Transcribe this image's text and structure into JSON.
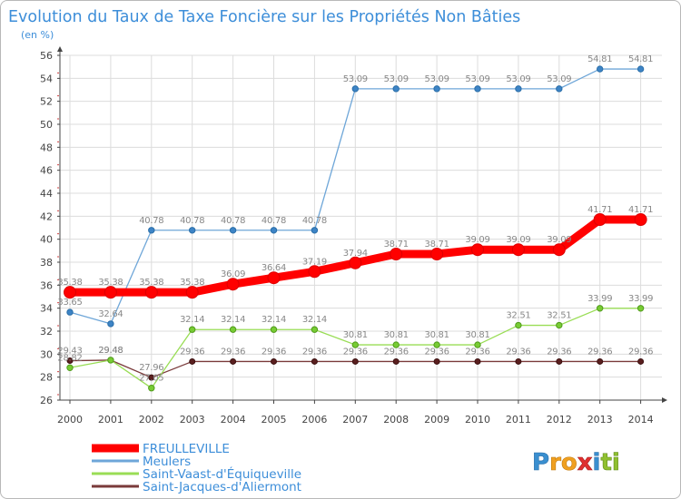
{
  "chart_data": {
    "type": "line",
    "title": "Evolution du Taux de Taxe Foncière sur les Propriétés Non Bâties",
    "subtitle": "(en %)",
    "xlabel": "",
    "ylabel": "",
    "categories": [
      "2000",
      "2001",
      "2002",
      "2003",
      "2004",
      "2005",
      "2006",
      "2007",
      "2008",
      "2009",
      "2010",
      "2011",
      "2012",
      "2013",
      "2014"
    ],
    "ylim": [
      26,
      56
    ],
    "yticks": [
      "26",
      "28",
      "30",
      "32",
      "34",
      "36",
      "38",
      "40",
      "42",
      "44",
      "46",
      "48",
      "50",
      "52",
      "54",
      "56"
    ],
    "grid": true,
    "legend_position": "bottom-left",
    "series": [
      {
        "name": "FREULLEVILLE",
        "color": "#ff0000",
        "label_color": "#888888",
        "values": [
          35.38,
          35.38,
          35.38,
          35.38,
          36.09,
          36.64,
          37.19,
          37.94,
          38.71,
          38.71,
          39.09,
          39.09,
          39.09,
          41.71,
          41.71
        ],
        "labels": [
          "35.38",
          "35.38",
          "35.38",
          "35.38",
          "36.09",
          "36.64",
          "37.19",
          "37.94",
          "38.71",
          "38.71",
          "39.09",
          "39.09",
          "39.09",
          "41.71",
          "41.71"
        ]
      },
      {
        "name": "Meulers",
        "color": "#6ea6d8",
        "label_color": "#888888",
        "values": [
          33.65,
          32.64,
          40.78,
          40.78,
          40.78,
          40.78,
          40.78,
          53.09,
          53.09,
          53.09,
          53.09,
          53.09,
          53.09,
          54.81,
          54.81
        ],
        "labels": [
          "33.65",
          "32.64",
          "40.78",
          "40.78",
          "40.78",
          "40.78",
          "40.78",
          "53.09",
          "53.09",
          "53.09",
          "53.09",
          "53.09",
          "53.09",
          "54.81",
          "54.81"
        ]
      },
      {
        "name": "Saint-Vaast-d'Équiqueville",
        "color": "#99dd55",
        "label_color": "#888888",
        "values": [
          28.82,
          29.48,
          27.05,
          32.14,
          32.14,
          32.14,
          32.14,
          30.81,
          30.81,
          30.81,
          30.81,
          32.51,
          32.51,
          33.99,
          33.99
        ],
        "labels": [
          "28.82",
          "29.48",
          "27.05",
          "32.14",
          "32.14",
          "32.14",
          "32.14",
          "30.81",
          "30.81",
          "30.81",
          "30.81",
          "32.51",
          "32.51",
          "33.99",
          "33.99"
        ]
      },
      {
        "name": "Saint-Jacques-d'Aliermont",
        "color": "#7a3a3a",
        "label_color": "#888888",
        "values": [
          29.43,
          29.48,
          27.96,
          29.36,
          29.36,
          29.36,
          29.36,
          29.36,
          29.36,
          29.36,
          29.36,
          29.36,
          29.36,
          29.36,
          29.36
        ],
        "labels": [
          "29.43",
          "29.48",
          "27.96",
          "29.36",
          "29.36",
          "29.36",
          "29.36",
          "29.36",
          "29.36",
          "29.36",
          "29.36",
          "29.36",
          "29.36",
          "29.36",
          "29.36"
        ]
      }
    ]
  },
  "logo": {
    "text": "Proxiti"
  }
}
